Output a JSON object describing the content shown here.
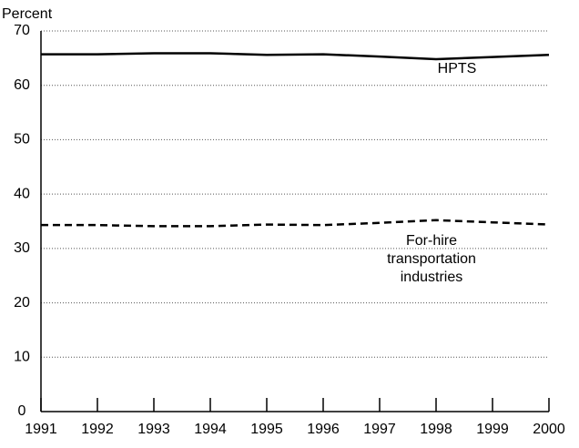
{
  "chart_data": {
    "type": "line",
    "y_label": "Percent",
    "x": [
      1991,
      1992,
      1993,
      1994,
      1995,
      1996,
      1997,
      1998,
      1999,
      2000
    ],
    "xlim": [
      1991,
      2000
    ],
    "xticks": [
      1991,
      1992,
      1993,
      1994,
      1995,
      1996,
      1997,
      1998,
      1999,
      2000
    ],
    "ylim": [
      0,
      70
    ],
    "yticks": [
      0,
      10,
      20,
      30,
      40,
      50,
      60,
      70
    ],
    "grid": true,
    "series": [
      {
        "name": "HPTS",
        "color": "#000000",
        "dash": "solid",
        "values": [
          65.7,
          65.7,
          65.9,
          65.9,
          65.6,
          65.7,
          65.3,
          64.8,
          65.2,
          65.6
        ]
      },
      {
        "name": "For-hire transportation industries",
        "color": "#000000",
        "dash": "dashed",
        "values": [
          34.3,
          34.3,
          34.1,
          34.1,
          34.4,
          34.3,
          34.7,
          35.2,
          34.8,
          34.4
        ]
      }
    ]
  }
}
